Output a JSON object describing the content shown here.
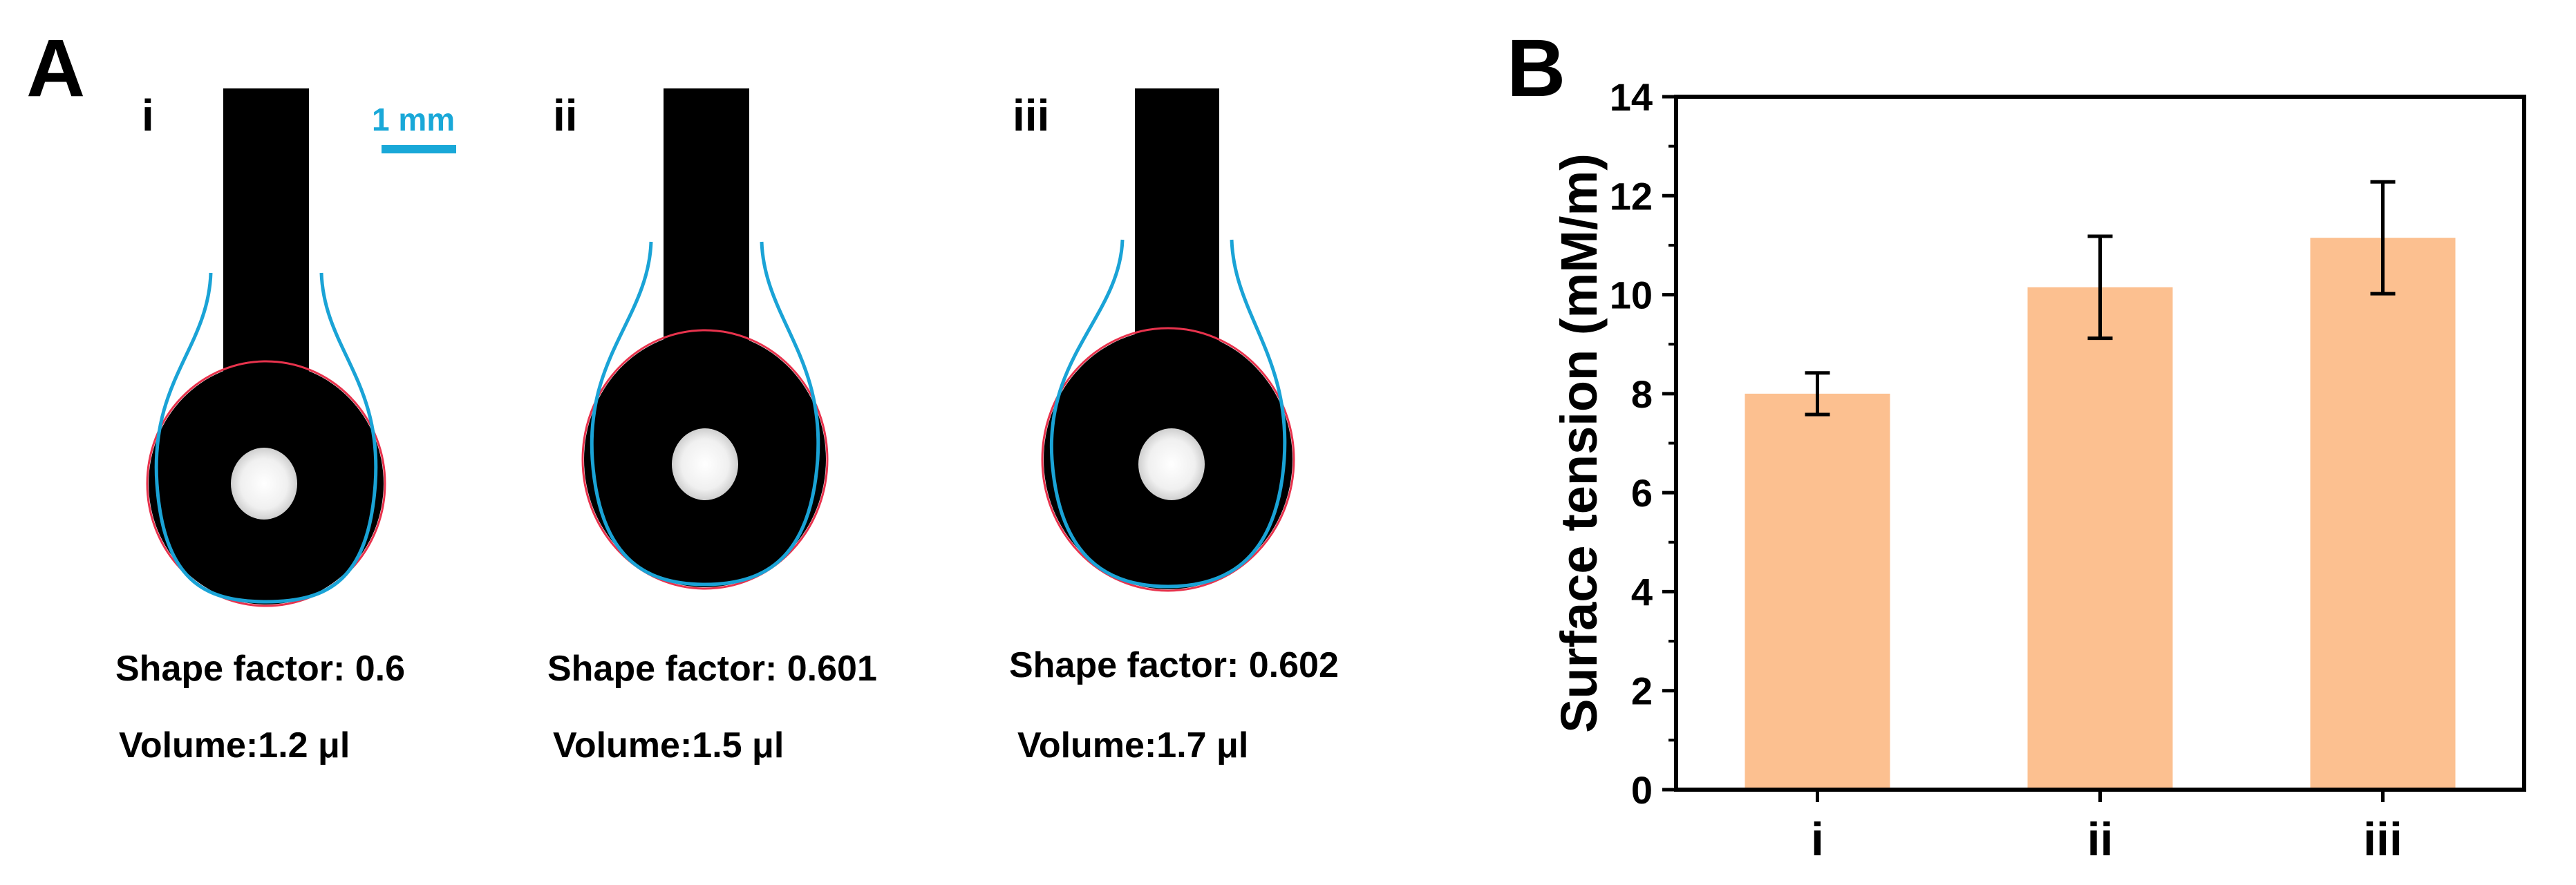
{
  "panel_a": {
    "letter": "A",
    "scale_bar_label": "1 mm",
    "drops": [
      {
        "label": "i",
        "shape_factor": "Shape factor: 0.6",
        "volume": "Volume:1.2 μl"
      },
      {
        "label": "ii",
        "shape_factor": "Shape factor: 0.601",
        "volume": "Volume:1.5 μl"
      },
      {
        "label": "iii",
        "shape_factor": "Shape factor: 0.602",
        "volume": "Volume:1.7 μl"
      }
    ],
    "colors": {
      "needle": "#000000",
      "fit_curve": "#1aa3d6",
      "drop_edge": "#e8334d",
      "scale_bar": "#19a8d8"
    }
  },
  "panel_b": {
    "letter": "B"
  },
  "chart_data": {
    "type": "bar",
    "categories": [
      "i",
      "ii",
      "iii"
    ],
    "values": [
      8.0,
      10.15,
      11.15
    ],
    "errors": [
      0.42,
      1.03,
      1.13
    ],
    "ylabel": "Surface tension (mM/m)",
    "xlabel": "",
    "ylim": [
      0,
      14
    ],
    "yticks": [
      0,
      2,
      4,
      6,
      8,
      10,
      12,
      14
    ],
    "grid": false,
    "bar_color": "#fcc090",
    "error_color": "#000000"
  }
}
